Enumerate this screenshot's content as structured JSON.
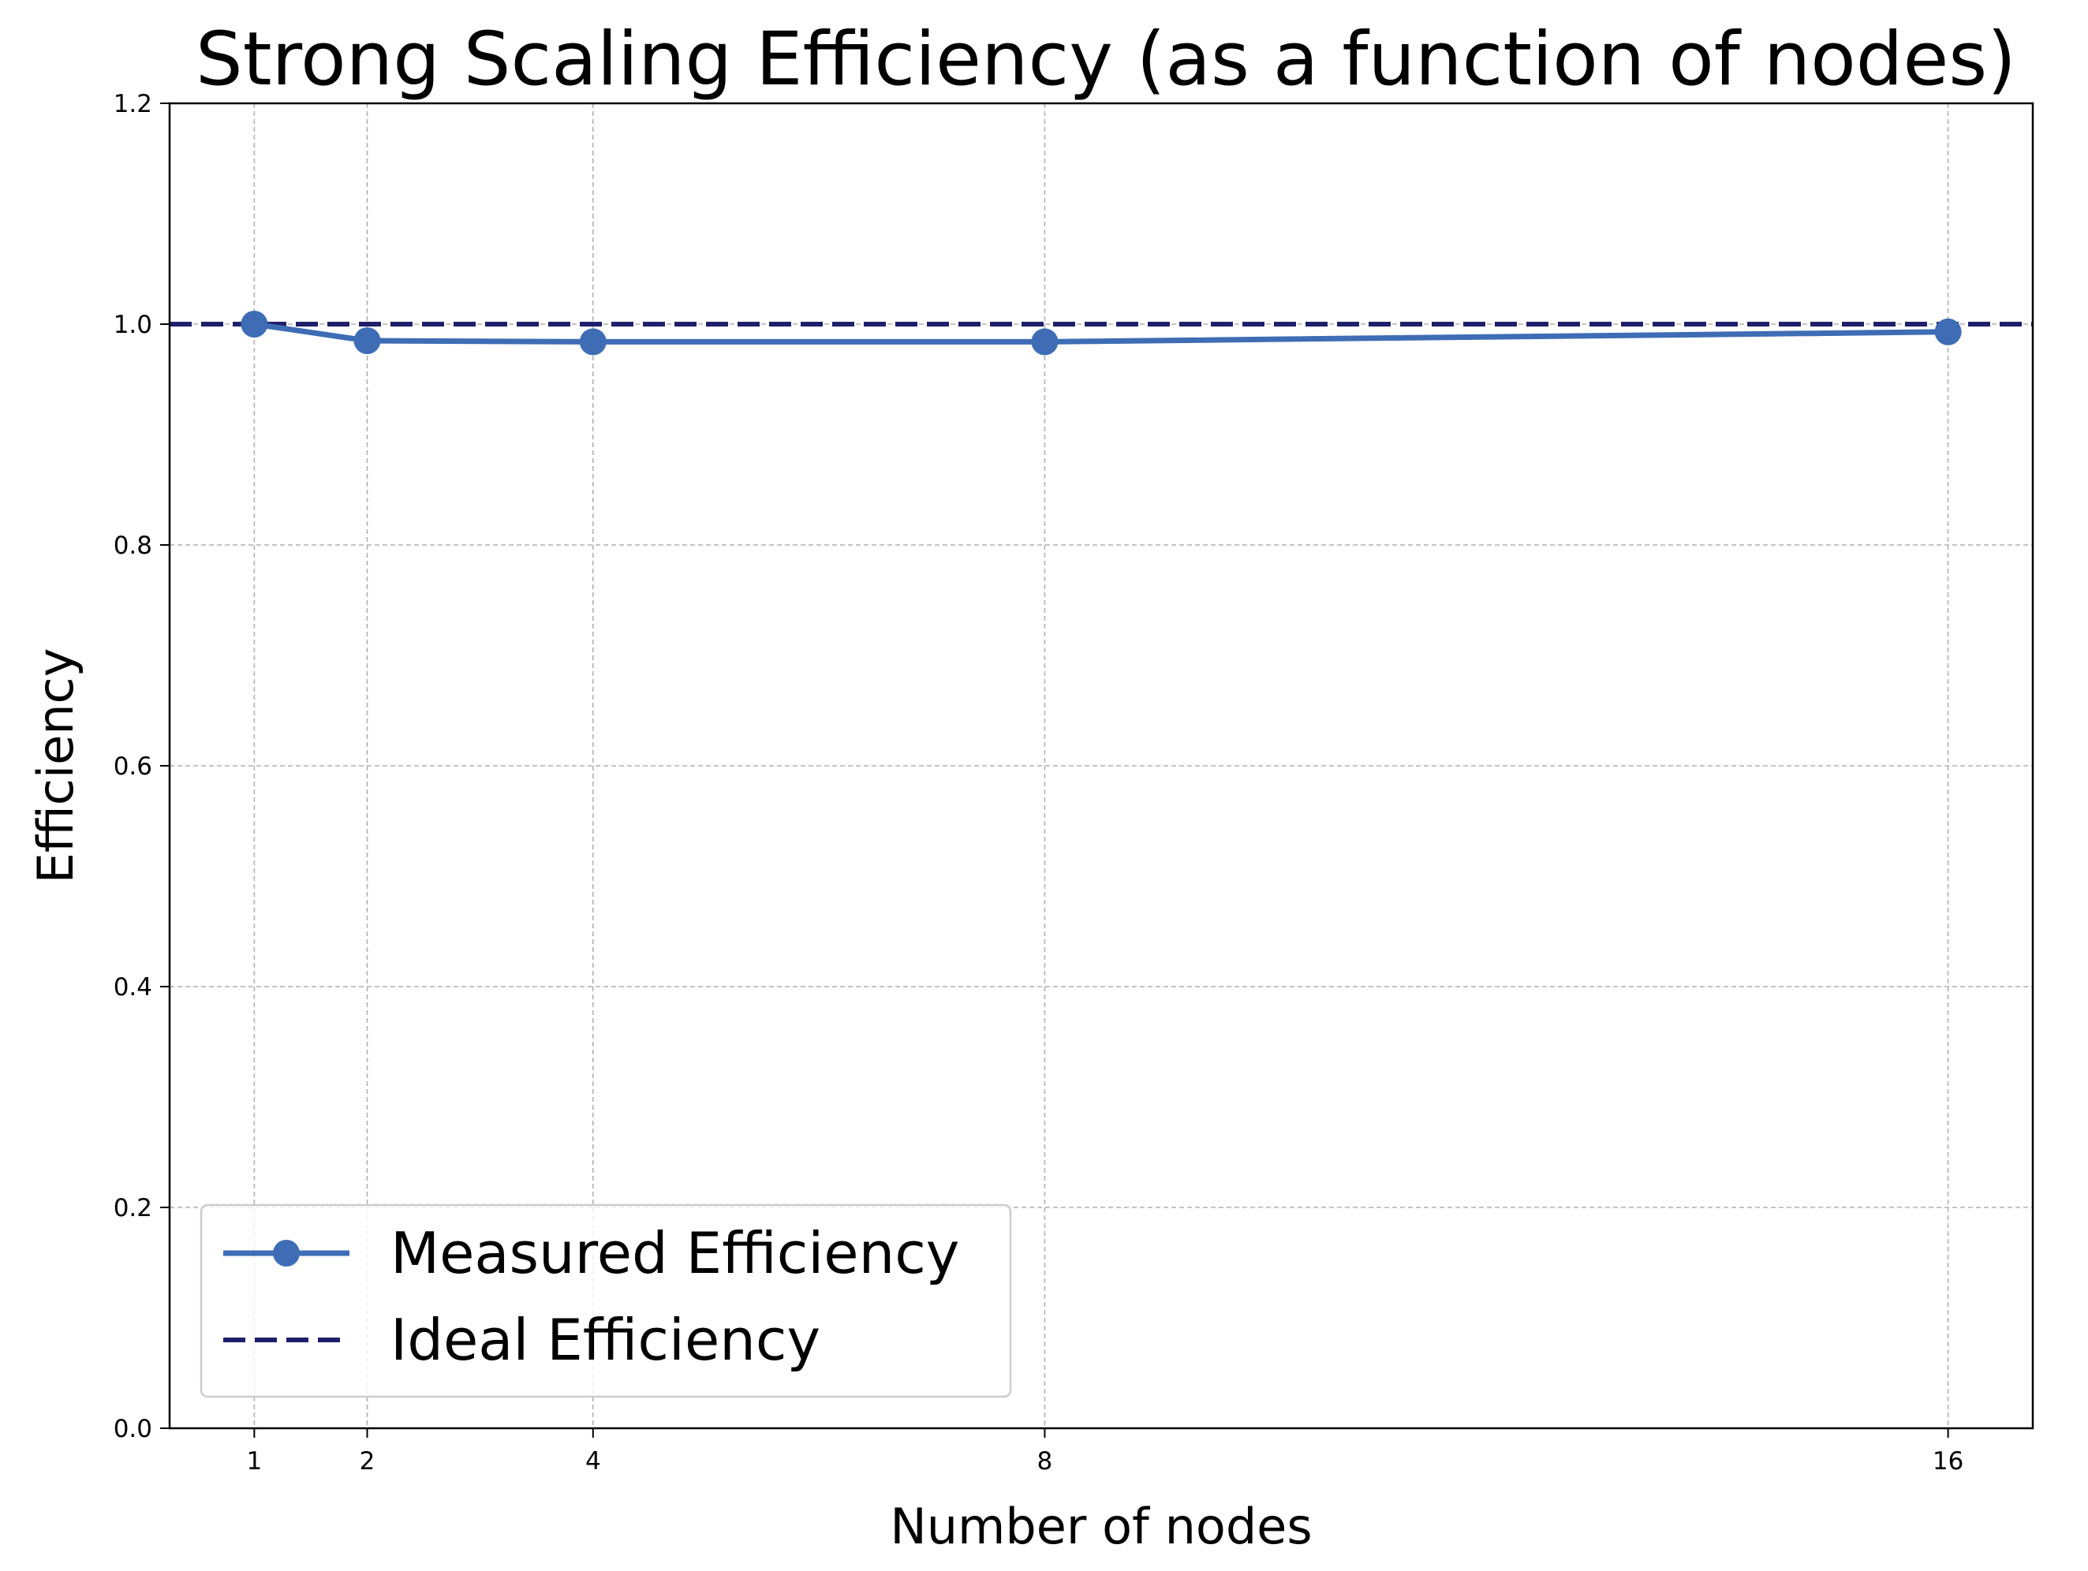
{
  "chart_data": {
    "type": "line",
    "title": "Strong Scaling Efficiency (as a function of nodes)",
    "xlabel": "Number of nodes",
    "ylabel": "Efficiency",
    "x": [
      1,
      2,
      4,
      8,
      16
    ],
    "x_tick_labels": [
      "1",
      "2",
      "4",
      "8",
      "16"
    ],
    "xlim": [
      0.25,
      16.75
    ],
    "ylim": [
      0,
      1.2
    ],
    "y_ticks": [
      0.0,
      0.2,
      0.4,
      0.6,
      0.8,
      1.0,
      1.2
    ],
    "y_tick_labels": [
      "0.0",
      "0.2",
      "0.4",
      "0.6",
      "0.8",
      "1.0",
      "1.2"
    ],
    "series": [
      {
        "name": "Measured Efficiency",
        "values": [
          1.0,
          0.985,
          0.984,
          0.984,
          0.993
        ],
        "color": "#3e6db5",
        "style": "solid",
        "marker": "circle"
      },
      {
        "name": "Ideal Efficiency",
        "values": [
          1.0,
          1.0,
          1.0,
          1.0,
          1.0
        ],
        "span_full_width": true,
        "color": "#1f1f6b",
        "style": "dashed",
        "marker": "none"
      }
    ],
    "grid": true,
    "legend_position": "lower-left"
  }
}
